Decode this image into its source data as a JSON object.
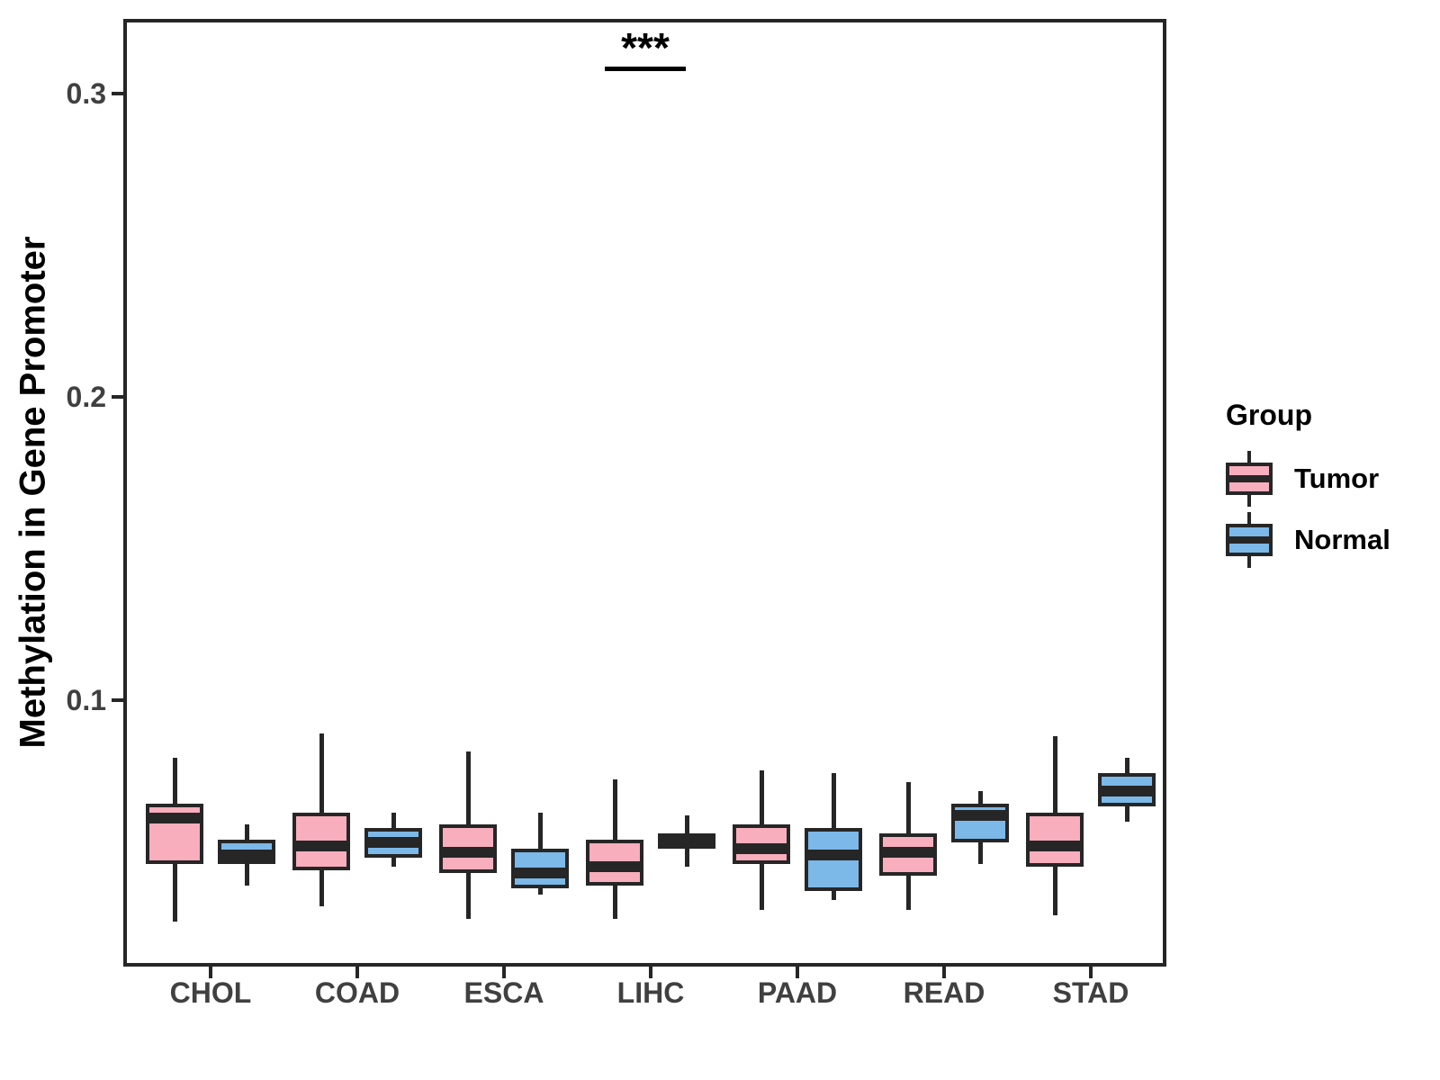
{
  "chart_data": {
    "type": "boxplot",
    "title": "",
    "xlabel": "",
    "ylabel": "Methylation in Gene Promoter",
    "categories": [
      "CHOL",
      "COAD",
      "ESCA",
      "LIHC",
      "PAAD",
      "READ",
      "STAD"
    ],
    "y_ticks": [
      {
        "label": "0.1",
        "value": 0.1
      },
      {
        "label": "0.2",
        "value": 0.2
      },
      {
        "label": "0.3",
        "value": 0.3
      }
    ],
    "ylim": [
      0.012,
      0.324
    ],
    "grid": false,
    "panel_border": true,
    "legend": {
      "title": "Group",
      "position": "right",
      "entries": [
        {
          "label": "Tumor",
          "color": "#F9AEBD"
        },
        {
          "label": "Normal",
          "color": "#7CB8E8"
        }
      ]
    },
    "series": [
      {
        "name": "Tumor",
        "fill": "#F9AEBD",
        "boxes": [
          {
            "category": "CHOL",
            "whisker_low": 0.027,
            "q1": 0.046,
            "median": 0.061,
            "q3": 0.066,
            "whisker_high": 0.081
          },
          {
            "category": "COAD",
            "whisker_low": 0.032,
            "q1": 0.044,
            "median": 0.052,
            "q3": 0.063,
            "whisker_high": 0.089
          },
          {
            "category": "ESCA",
            "whisker_low": 0.028,
            "q1": 0.043,
            "median": 0.05,
            "q3": 0.059,
            "whisker_high": 0.083
          },
          {
            "category": "LIHC",
            "whisker_low": 0.028,
            "q1": 0.039,
            "median": 0.045,
            "q3": 0.054,
            "whisker_high": 0.074
          },
          {
            "category": "PAAD",
            "whisker_low": 0.031,
            "q1": 0.046,
            "median": 0.051,
            "q3": 0.059,
            "whisker_high": 0.077
          },
          {
            "category": "READ",
            "whisker_low": 0.031,
            "q1": 0.042,
            "median": 0.05,
            "q3": 0.056,
            "whisker_high": 0.073
          },
          {
            "category": "STAD",
            "whisker_low": 0.029,
            "q1": 0.045,
            "median": 0.052,
            "q3": 0.063,
            "whisker_high": 0.088
          }
        ]
      },
      {
        "name": "Normal",
        "fill": "#7CB8E8",
        "boxes": [
          {
            "category": "CHOL",
            "whisker_low": 0.039,
            "q1": 0.046,
            "median": 0.049,
            "q3": 0.054,
            "whisker_high": 0.059
          },
          {
            "category": "COAD",
            "whisker_low": 0.045,
            "q1": 0.048,
            "median": 0.053,
            "q3": 0.058,
            "whisker_high": 0.063
          },
          {
            "category": "ESCA",
            "whisker_low": 0.036,
            "q1": 0.038,
            "median": 0.043,
            "q3": 0.051,
            "whisker_high": 0.063
          },
          {
            "category": "LIHC",
            "whisker_low": 0.045,
            "q1": 0.051,
            "median": 0.053,
            "q3": 0.056,
            "whisker_high": 0.062
          },
          {
            "category": "PAAD",
            "whisker_low": 0.034,
            "q1": 0.037,
            "median": 0.049,
            "q3": 0.058,
            "whisker_high": 0.076
          },
          {
            "category": "READ",
            "whisker_low": 0.046,
            "q1": 0.053,
            "median": 0.062,
            "q3": 0.066,
            "whisker_high": 0.07
          },
          {
            "category": "STAD",
            "whisker_low": 0.06,
            "q1": 0.065,
            "median": 0.07,
            "q3": 0.076,
            "whisker_high": 0.081
          }
        ]
      }
    ],
    "annotation": {
      "text": "***",
      "category": "LIHC",
      "bar_value": 0.309
    }
  },
  "style": {
    "box_border_color": "#262626",
    "axis_text_color": "#404040",
    "title_color": "#000000",
    "background": "#ffffff"
  }
}
